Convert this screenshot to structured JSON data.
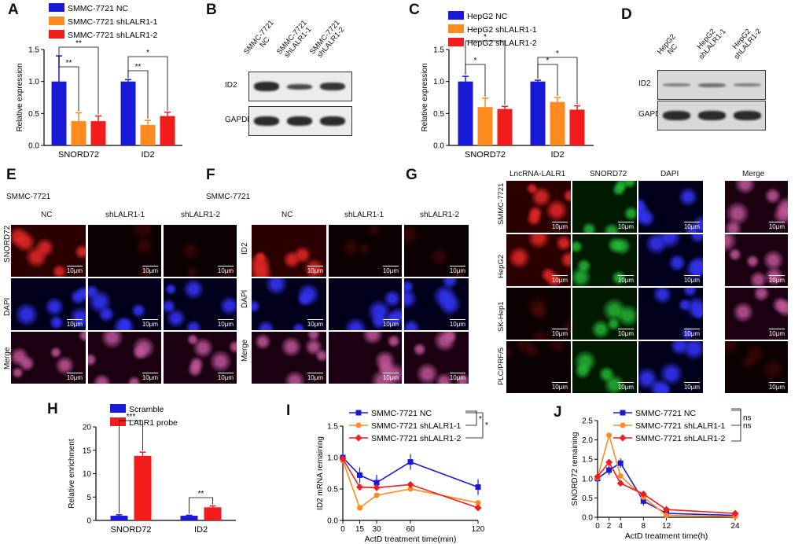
{
  "panels": {
    "A": "A",
    "B": "B",
    "C": "C",
    "D": "D",
    "E": "E",
    "F": "F",
    "G": "G",
    "H": "H",
    "I": "I",
    "J": "J"
  },
  "chart_data": [
    {
      "type": "bar",
      "panel": "A",
      "categories": [
        "SNORD72",
        "ID2"
      ],
      "series": [
        {
          "name": "SMMC-7721 NC",
          "values": [
            1.0,
            1.0
          ],
          "errors": [
            0.4,
            0.03
          ],
          "color": "#1a1ad6"
        },
        {
          "name": "SMMC-7721 shLALR1-1",
          "values": [
            0.38,
            0.32
          ],
          "errors": [
            0.13,
            0.07
          ],
          "color": "#ff8a1f"
        },
        {
          "name": "SMMC-7721 shLALR1-2",
          "values": [
            0.38,
            0.46
          ],
          "errors": [
            0.08,
            0.06
          ],
          "color": "#f21c1c"
        }
      ],
      "ylabel": "Relative expression",
      "ylim": [
        0,
        1.5
      ],
      "yticks": [
        "0.0",
        "0.5",
        "1.0",
        "1.5"
      ],
      "significance": [
        "**",
        "**",
        "**",
        "*"
      ]
    },
    {
      "type": "bar",
      "panel": "C",
      "categories": [
        "SNORD72",
        "ID2"
      ],
      "series": [
        {
          "name": "HepG2  NC",
          "values": [
            1.0,
            1.0
          ],
          "errors": [
            0.08,
            0.02
          ],
          "color": "#1a1ad6"
        },
        {
          "name": "HepG2 shLALR1-1",
          "values": [
            0.6,
            0.68
          ],
          "errors": [
            0.14,
            0.07
          ],
          "color": "#ff8a1f"
        },
        {
          "name": "HepG2 shLALR1-2",
          "values": [
            0.57,
            0.56
          ],
          "errors": [
            0.04,
            0.06
          ],
          "color": "#f21c1c"
        }
      ],
      "ylabel": "Relative expression",
      "ylim": [
        0,
        1.5
      ],
      "yticks": [
        "0.0",
        "0.5",
        "1.0",
        "1.5"
      ],
      "significance": [
        "*",
        "*",
        "*",
        "*"
      ]
    },
    {
      "type": "bar",
      "panel": "H",
      "categories": [
        "SNORD72",
        "ID2"
      ],
      "series": [
        {
          "name": "Scramble",
          "values": [
            1.0,
            1.0
          ],
          "errors": [
            0.2,
            0.1
          ],
          "color": "#1a1ad6"
        },
        {
          "name": "LALR1 probe",
          "values": [
            13.8,
            2.8
          ],
          "errors": [
            0.8,
            0.3
          ],
          "color": "#f21c1c"
        }
      ],
      "ylabel": "Relative enrichment",
      "ylim": [
        0,
        20
      ],
      "yticks": [
        "0",
        "5",
        "10",
        "15",
        "20"
      ],
      "significance": [
        "***",
        "**"
      ]
    },
    {
      "type": "line",
      "panel": "I",
      "x": [
        0,
        15,
        30,
        60,
        120
      ],
      "series": [
        {
          "name": "SMMC-7721 NC",
          "values": [
            1.0,
            0.72,
            0.6,
            0.93,
            0.53
          ],
          "color": "#1a1ad6"
        },
        {
          "name": "SMMC-7721 shLALR1-1",
          "values": [
            0.95,
            0.2,
            0.4,
            0.5,
            0.28
          ],
          "color": "#ff8a1f"
        },
        {
          "name": "SMMC-7721 shLALR1-2",
          "values": [
            0.98,
            0.53,
            0.52,
            0.57,
            0.2
          ],
          "color": "#f21c1c"
        }
      ],
      "xlabel": "ActD treatment time(min)",
      "ylabel": "ID2 mRNA remaining",
      "ylim": [
        0,
        1.5
      ],
      "yticks": [
        "0.0",
        "0.5",
        "1.0",
        "1.5"
      ],
      "xticks": [
        "0",
        "15",
        "30",
        "60",
        "120"
      ],
      "significance": [
        "*",
        "*"
      ]
    },
    {
      "type": "line",
      "panel": "J",
      "x": [
        0,
        2,
        4,
        8,
        12,
        24
      ],
      "series": [
        {
          "name": "SMMC-7721 NC",
          "values": [
            1.0,
            1.22,
            1.4,
            0.42,
            0.1,
            0.05
          ],
          "color": "#1a1ad6"
        },
        {
          "name": "SMMC-7721 shLALR1-1",
          "values": [
            1.02,
            2.12,
            1.07,
            0.52,
            0.05,
            0.02
          ],
          "color": "#ff8a1f"
        },
        {
          "name": "SMMC-7721 shLALR1-2",
          "values": [
            1.05,
            1.42,
            0.88,
            0.6,
            0.2,
            0.1
          ],
          "color": "#f21c1c"
        }
      ],
      "xlabel": "ActD treatment time(h)",
      "ylabel": "SNORD72 remaining",
      "ylim": [
        0,
        2.5
      ],
      "yticks": [
        "0.0",
        "0.5",
        "1.0",
        "1.5",
        "2.0",
        "2.5"
      ],
      "xticks": [
        "0",
        "2",
        "4",
        "8",
        "12",
        "24"
      ],
      "significance": [
        "ns",
        "ns"
      ]
    }
  ],
  "blotB": {
    "lanes": [
      "SMMC-7721\nNC",
      "SMMC-7721\nshLALR1-1",
      "SMMC-7721\nshLALR1-2"
    ],
    "rows": [
      "ID2",
      "GAPDH"
    ]
  },
  "blotD": {
    "lanes": [
      "HepG2\nNC",
      "HepG2\nshLALR1-1",
      "HepG2\nshLALR1-2"
    ],
    "rows": [
      "ID2",
      "GAPDH"
    ]
  },
  "panelE": {
    "title": "SMMC-7721",
    "cols": [
      "NC",
      "shLALR1-1",
      "shLALR1-2"
    ],
    "rows": [
      "SNORD72",
      "DAPI",
      "Merge"
    ],
    "scale": "10μm"
  },
  "panelF": {
    "title": "SMMC-7721",
    "cols": [
      "NC",
      "shLALR1-1",
      "shLALR1-2"
    ],
    "rows": [
      "ID2",
      "DAPI",
      "Merge"
    ],
    "scale": "10μm"
  },
  "panelG": {
    "cols": [
      "LncRNA-LALR1",
      "SNORD72",
      "DAPI",
      "Merge"
    ],
    "rows": [
      "SMMC-7721",
      "HepG2",
      "SK-Hep1",
      "PLC/PRF/5"
    ],
    "scale": "10μm"
  }
}
